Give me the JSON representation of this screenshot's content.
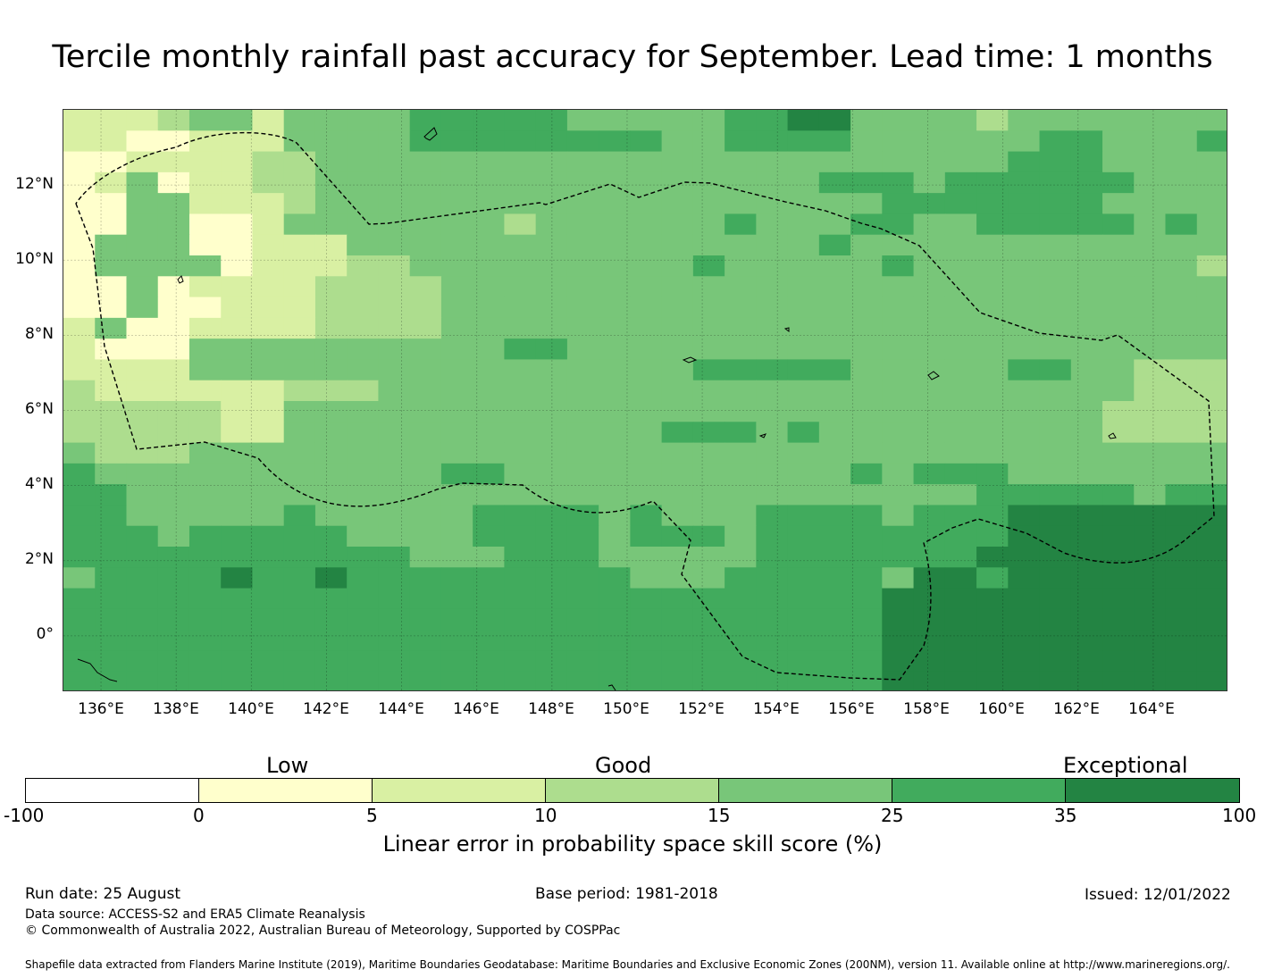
{
  "title": "Tercile monthly rainfall past accuracy for September. Lead time: 1 months",
  "map": {
    "lat_labels": [
      "12°N",
      "10°N",
      "8°N",
      "6°N",
      "4°N",
      "2°N",
      "0°"
    ],
    "lon_labels": [
      "136°E",
      "138°E",
      "140°E",
      "142°E",
      "144°E",
      "146°E",
      "148°E",
      "150°E",
      "152°E",
      "154°E",
      "156°E",
      "158°E",
      "160°E",
      "162°E",
      "164°E"
    ],
    "palette": [
      "#ffffcc",
      "#d9f0a3",
      "#addd8e",
      "#78c679",
      "#41ab5d",
      "#238443"
    ],
    "grid_codes": [
      "2223442444455555444445566444434444444",
      "2211222444455555555445555444444554445",
      "1122223344444444444444444444445554444",
      "1201223344444444444444445554555555444",
      "1100222344444444444444444455555554444",
      "1100112444444434444445444554455555454",
      "1000112224444444444444445444444444444",
      "1000012223344444444454444454444444443",
      "1101222233334444444444444444444444444",
      "1101122233334444444444444444444444444",
      "2011222233334444444444444444444444444",
      "2111444444444455444444444444444444444",
      "2222444444444444444455555444445544333",
      "3222222333444444444444444444444444333",
      "3333322444444444444444444444444443333",
      "3333322444444444444555454444444443333",
      "4333444444444444444444444444444444444",
      "5444444444445544444444444545554444444",
      "5544444444444444444444444444455555455",
      "5544444544444555545444555545556666666",
      "5554555554444555545554555555556666666",
      "5555555555544455544444555555566666666",
      "4555565565555555554445555546656666666",
      "5555555555555555555555555566666666666",
      "5555555555555555555555555566666666666",
      "5555555555555555555555555566666666666",
      "5555555555555555555555555566666666666",
      "5555555555555555555555555566666666666"
    ]
  },
  "colorbar": {
    "categories": [
      "Low",
      "Good",
      "Exceptional"
    ],
    "segment_colors": [
      "#ffffff",
      "#ffffcc",
      "#d9f0a3",
      "#addd8e",
      "#78c679",
      "#41ab5d",
      "#238443"
    ],
    "ticks": [
      "-100",
      "0",
      "5",
      "10",
      "15",
      "25",
      "35",
      "100"
    ],
    "label": "Linear error in probability space skill score (%)"
  },
  "footer": {
    "run_date": "Run date: 25 August",
    "base_period": "Base period: 1981-2018",
    "issued": "Issued: 12/01/2022",
    "data_source": "Data source: ACCESS-S2 and ERA5 Climate Reanalysis",
    "copyright": "© Commonwealth of Australia 2022, Australian Bureau of Meteorology, Supported by COSPPac",
    "shapefile": "Shapefile data extracted from Flanders Marine Institute (2019), Maritime Boundaries Geodatabase: Maritime Boundaries and Exclusive Economic Zones (200NM), version 11. Available online at http://www.marineregions.org/."
  }
}
